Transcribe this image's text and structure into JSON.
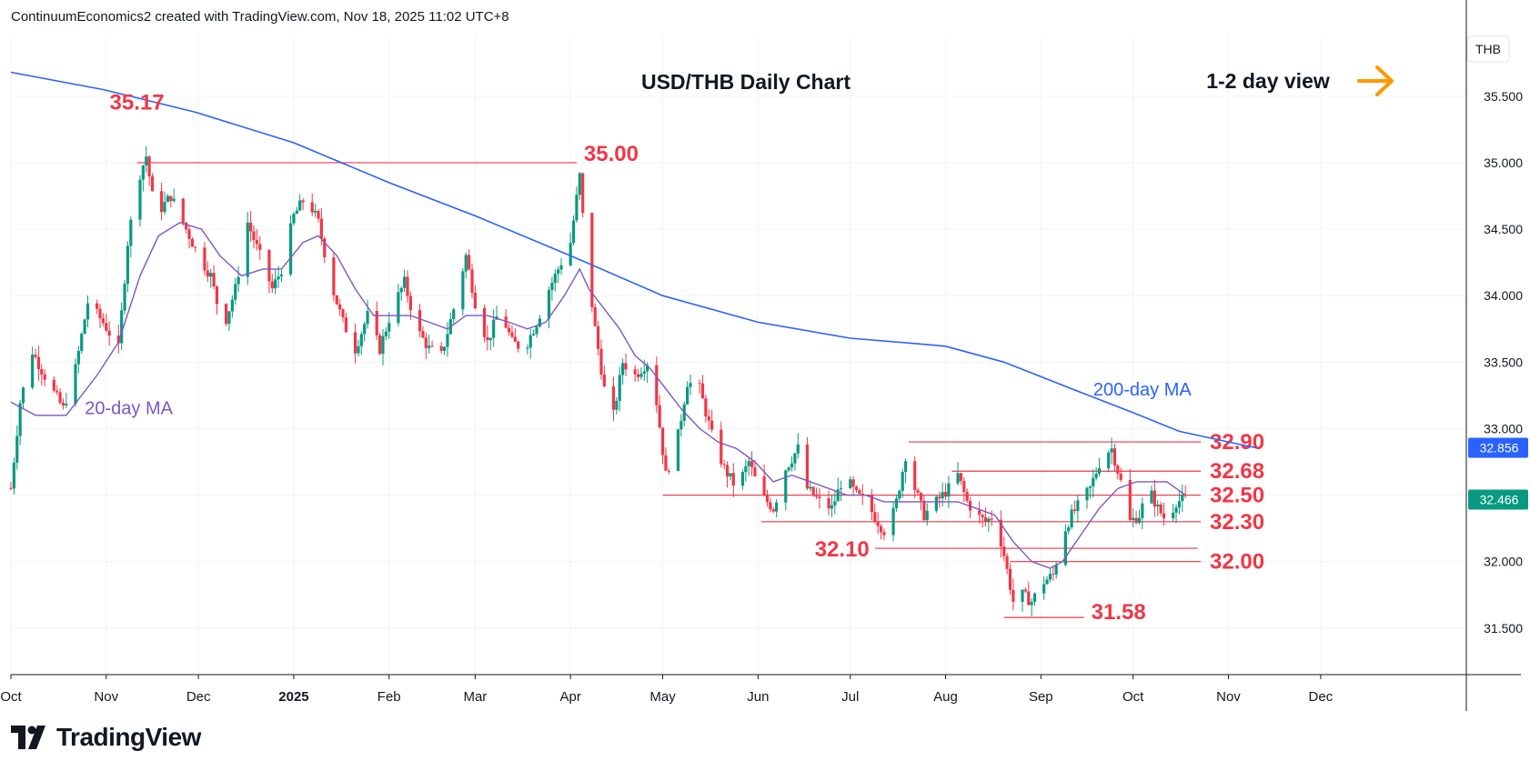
{
  "header": {
    "credit": "ContinuumEconomics2 created with TradingView.com, Nov 18, 2025 11:02 UTC+8"
  },
  "footer": {
    "brand": "TradingView"
  },
  "chart_data": {
    "type": "candlestick",
    "title": "USD/THB Daily Chart",
    "view_label": "1-2 day view",
    "currency": "THB",
    "last_price": "32.466",
    "ma200_last": "32.856",
    "ylim": [
      31.15,
      35.95
    ],
    "y_ticks": [
      "31.500",
      "32.000",
      "32.500",
      "33.000",
      "33.500",
      "34.000",
      "34.500",
      "35.000",
      "35.500"
    ],
    "x_ticks": [
      {
        "label": "Oct",
        "day": 0
      },
      {
        "label": "Nov",
        "day": 31
      },
      {
        "label": "Dec",
        "day": 61
      },
      {
        "label": "2025",
        "day": 92
      },
      {
        "label": "Feb",
        "day": 123
      },
      {
        "label": "Mar",
        "day": 151
      },
      {
        "label": "Apr",
        "day": 182
      },
      {
        "label": "May",
        "day": 212
      },
      {
        "label": "Jun",
        "day": 243
      },
      {
        "label": "Jul",
        "day": 273
      },
      {
        "label": "Aug",
        "day": 304
      },
      {
        "label": "Sep",
        "day": 335
      },
      {
        "label": "Oct",
        "day": 365
      },
      {
        "label": "Nov",
        "day": 396
      },
      {
        "label": "Dec",
        "day": 426
      }
    ],
    "price_path": [
      [
        0,
        32.55
      ],
      [
        3,
        33.2
      ],
      [
        7,
        33.58
      ],
      [
        12,
        33.35
      ],
      [
        17,
        33.15
      ],
      [
        21,
        33.45
      ],
      [
        25,
        33.95
      ],
      [
        30,
        33.8
      ],
      [
        35,
        33.6
      ],
      [
        38,
        34.4
      ],
      [
        41,
        34.85
      ],
      [
        44,
        35.05
      ],
      [
        47,
        34.6
      ],
      [
        52,
        34.75
      ],
      [
        56,
        34.55
      ],
      [
        61,
        34.3
      ],
      [
        65,
        34.15
      ],
      [
        69,
        33.75
      ],
      [
        73,
        34.05
      ],
      [
        77,
        34.55
      ],
      [
        81,
        34.3
      ],
      [
        85,
        34.05
      ],
      [
        88,
        34.2
      ],
      [
        92,
        34.6
      ],
      [
        96,
        34.75
      ],
      [
        100,
        34.55
      ],
      [
        104,
        34.1
      ],
      [
        108,
        33.8
      ],
      [
        112,
        33.6
      ],
      [
        116,
        33.85
      ],
      [
        120,
        33.6
      ],
      [
        124,
        33.9
      ],
      [
        128,
        34.1
      ],
      [
        132,
        33.75
      ],
      [
        136,
        33.6
      ],
      [
        140,
        33.55
      ],
      [
        144,
        33.9
      ],
      [
        148,
        34.3
      ],
      [
        151,
        33.95
      ],
      [
        155,
        33.65
      ],
      [
        159,
        33.9
      ],
      [
        163,
        33.65
      ],
      [
        167,
        33.6
      ],
      [
        171,
        33.8
      ],
      [
        175,
        34.05
      ],
      [
        179,
        34.25
      ],
      [
        182,
        34.4
      ],
      [
        185,
        34.9
      ],
      [
        187,
        34.3
      ],
      [
        190,
        33.75
      ],
      [
        193,
        33.3
      ],
      [
        196,
        33.1
      ],
      [
        199,
        33.5
      ],
      [
        203,
        33.4
      ],
      [
        207,
        33.5
      ],
      [
        210,
        33.2
      ],
      [
        213,
        32.65
      ],
      [
        217,
        32.95
      ],
      [
        220,
        33.35
      ],
      [
        224,
        33.3
      ],
      [
        228,
        32.95
      ],
      [
        232,
        32.7
      ],
      [
        236,
        32.55
      ],
      [
        240,
        32.75
      ],
      [
        244,
        32.5
      ],
      [
        248,
        32.4
      ],
      [
        252,
        32.7
      ],
      [
        256,
        32.85
      ],
      [
        259,
        32.55
      ],
      [
        263,
        32.45
      ],
      [
        267,
        32.4
      ],
      [
        271,
        32.65
      ],
      [
        275,
        32.5
      ],
      [
        278,
        32.45
      ],
      [
        282,
        32.3
      ],
      [
        285,
        32.2
      ],
      [
        288,
        32.45
      ],
      [
        291,
        32.8
      ],
      [
        294,
        32.55
      ],
      [
        297,
        32.35
      ],
      [
        301,
        32.45
      ],
      [
        305,
        32.55
      ],
      [
        308,
        32.65
      ],
      [
        311,
        32.45
      ],
      [
        314,
        32.35
      ],
      [
        317,
        32.3
      ],
      [
        320,
        32.35
      ],
      [
        323,
        32.05
      ],
      [
        326,
        31.7
      ],
      [
        329,
        31.75
      ],
      [
        332,
        31.7
      ],
      [
        336,
        31.85
      ],
      [
        339,
        31.9
      ],
      [
        342,
        32.2
      ],
      [
        345,
        32.35
      ],
      [
        348,
        32.45
      ],
      [
        351,
        32.55
      ],
      [
        355,
        32.8
      ],
      [
        358,
        32.85
      ],
      [
        361,
        32.6
      ],
      [
        364,
        32.3
      ],
      [
        367,
        32.35
      ],
      [
        370,
        32.55
      ],
      [
        373,
        32.4
      ],
      [
        376,
        32.3
      ],
      [
        379,
        32.45
      ],
      [
        382,
        32.47
      ]
    ],
    "ma200_path": [
      [
        0,
        35.68
      ],
      [
        30,
        35.55
      ],
      [
        60,
        35.38
      ],
      [
        92,
        35.15
      ],
      [
        123,
        34.85
      ],
      [
        151,
        34.6
      ],
      [
        182,
        34.3
      ],
      [
        212,
        34.0
      ],
      [
        243,
        33.8
      ],
      [
        273,
        33.68
      ],
      [
        294,
        33.64
      ],
      [
        304,
        33.62
      ],
      [
        323,
        33.5
      ],
      [
        345,
        33.3
      ],
      [
        365,
        33.12
      ],
      [
        380,
        32.98
      ],
      [
        396,
        32.9
      ],
      [
        405,
        32.856
      ]
    ],
    "ma20_path": [
      [
        0,
        33.2
      ],
      [
        8,
        33.1
      ],
      [
        18,
        33.1
      ],
      [
        28,
        33.4
      ],
      [
        35,
        33.65
      ],
      [
        42,
        34.15
      ],
      [
        48,
        34.45
      ],
      [
        55,
        34.55
      ],
      [
        62,
        34.5
      ],
      [
        68,
        34.3
      ],
      [
        75,
        34.15
      ],
      [
        82,
        34.2
      ],
      [
        88,
        34.2
      ],
      [
        95,
        34.4
      ],
      [
        100,
        34.45
      ],
      [
        106,
        34.3
      ],
      [
        112,
        34.05
      ],
      [
        118,
        33.85
      ],
      [
        124,
        33.85
      ],
      [
        130,
        33.85
      ],
      [
        136,
        33.8
      ],
      [
        142,
        33.75
      ],
      [
        148,
        33.85
      ],
      [
        155,
        33.85
      ],
      [
        162,
        33.8
      ],
      [
        168,
        33.75
      ],
      [
        174,
        33.8
      ],
      [
        180,
        34.0
      ],
      [
        185,
        34.2
      ],
      [
        188,
        34.05
      ],
      [
        193,
        33.9
      ],
      [
        198,
        33.75
      ],
      [
        203,
        33.55
      ],
      [
        208,
        33.45
      ],
      [
        213,
        33.3
      ],
      [
        218,
        33.15
      ],
      [
        224,
        33.0
      ],
      [
        230,
        32.9
      ],
      [
        236,
        32.85
      ],
      [
        242,
        32.75
      ],
      [
        248,
        32.6
      ],
      [
        254,
        32.65
      ],
      [
        260,
        32.6
      ],
      [
        266,
        32.55
      ],
      [
        272,
        32.5
      ],
      [
        278,
        32.5
      ],
      [
        284,
        32.45
      ],
      [
        290,
        32.45
      ],
      [
        296,
        32.45
      ],
      [
        302,
        32.45
      ],
      [
        308,
        32.45
      ],
      [
        314,
        32.4
      ],
      [
        320,
        32.35
      ],
      [
        326,
        32.15
      ],
      [
        332,
        32.0
      ],
      [
        338,
        31.95
      ],
      [
        342,
        32.0
      ],
      [
        348,
        32.2
      ],
      [
        354,
        32.4
      ],
      [
        360,
        32.55
      ],
      [
        366,
        32.6
      ],
      [
        370,
        32.6
      ],
      [
        376,
        32.6
      ],
      [
        382,
        32.5
      ]
    ],
    "levels": [
      {
        "price": 35.0,
        "label": "35.00",
        "from": 41,
        "to": 184
      },
      {
        "price": 32.9,
        "label": "32.90",
        "from": 292,
        "to": 387
      },
      {
        "price": 32.68,
        "label": "32.68",
        "from": 306,
        "to": 387
      },
      {
        "price": 32.5,
        "label": "32.50",
        "from": 212,
        "to": 387
      },
      {
        "price": 32.3,
        "label": "32.30",
        "from": 244,
        "to": 387
      },
      {
        "price": 32.1,
        "label": "32.10",
        "from": 281,
        "to": 386
      },
      {
        "price": 32.0,
        "label": "32.00",
        "from": 325,
        "to": 387
      },
      {
        "price": 31.58,
        "label": "31.58",
        "from": 323,
        "to": 349
      }
    ],
    "annotations": [
      {
        "label": "35.17",
        "day": 41,
        "price": 35.17
      },
      {
        "label": "20-day MA",
        "day": 28,
        "price": 33.2
      },
      {
        "label": "200-day MA",
        "day": 370,
        "price": 33.2
      }
    ],
    "colors": {
      "up": "#089981",
      "down": "#f23645",
      "ma200": "#2962ff",
      "ma20": "#7e57c2",
      "level_line": "#f23645",
      "level_text": "#f23645",
      "arrow": "#ff9800",
      "grid": "#f0f3fa",
      "axis": "#131722"
    }
  }
}
